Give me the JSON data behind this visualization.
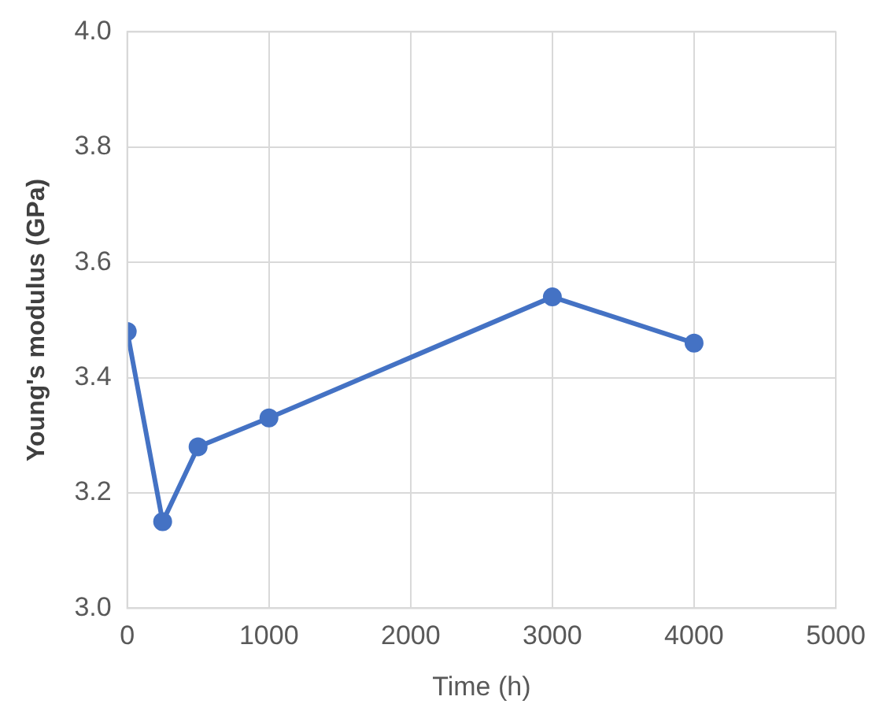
{
  "chart_data": {
    "type": "line",
    "xlabel": "Time (h)",
    "ylabel": "Young's modulus (GPa)",
    "x": [
      0,
      250,
      500,
      1000,
      3000,
      4000
    ],
    "series": [
      {
        "color": "#4472c4",
        "values": [
          3.48,
          3.15,
          3.28,
          3.33,
          3.54,
          3.46
        ]
      }
    ],
    "xlim": [
      0,
      5000
    ],
    "xticks": [
      0,
      1000,
      2000,
      3000,
      4000,
      5000
    ],
    "ylim": [
      3.0,
      4.0
    ],
    "yticks": [
      {
        "value": 3.0,
        "label": "3.0"
      },
      3.2,
      3.4,
      3.6,
      3.8,
      {
        "value": 4.0,
        "label": "4.0"
      }
    ],
    "grid": true,
    "legend": false,
    "marker": "circle",
    "line_style": "solid"
  }
}
